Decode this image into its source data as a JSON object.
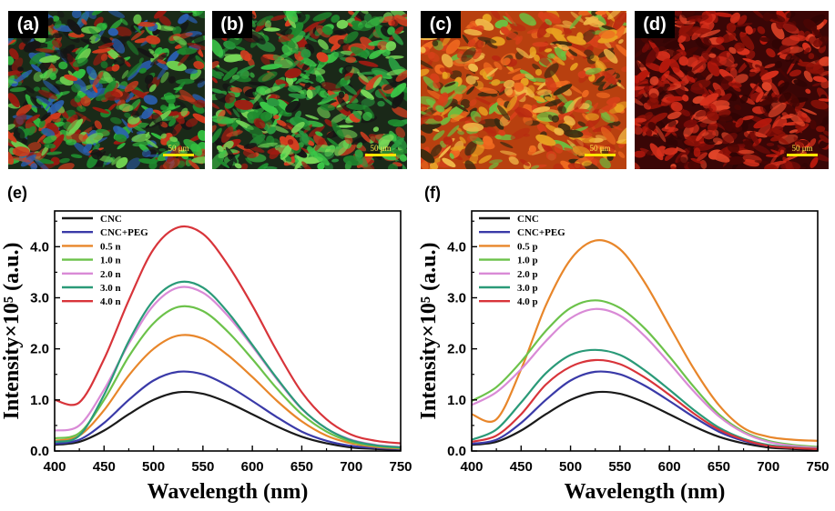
{
  "panels": [
    {
      "label": "(a)",
      "scale": "50 μm",
      "tone": "#2fb83a"
    },
    {
      "label": "(b)",
      "scale": "50 μm",
      "tone": "#34b33a"
    },
    {
      "label": "(c)",
      "scale": "50 μm",
      "tone": "#e0521c"
    },
    {
      "label": "(d)",
      "scale": "50 μm",
      "tone": "#b8190d"
    }
  ],
  "chart_data": [
    {
      "panel": "(e)",
      "type": "line",
      "xlabel": "Wavelength (nm)",
      "ylabel": "Intensity×10⁵ (a.u.)",
      "xlim": [
        400,
        750
      ],
      "ylim": [
        0,
        4.7
      ],
      "xticks": [
        "400",
        "450",
        "500",
        "550",
        "600",
        "650",
        "700",
        "750"
      ],
      "yticks": [
        "0.0",
        "1.0",
        "2.0",
        "3.0",
        "4.0"
      ],
      "legend_position": "top-left",
      "x": [
        400,
        425,
        450,
        475,
        500,
        525,
        550,
        575,
        600,
        625,
        650,
        675,
        700,
        725,
        750
      ],
      "series": [
        {
          "name": "CNC",
          "color": "#1a1a1a",
          "values": [
            0.12,
            0.18,
            0.4,
            0.72,
            1.0,
            1.15,
            1.12,
            0.95,
            0.72,
            0.48,
            0.28,
            0.15,
            0.07,
            0.04,
            0.02
          ]
        },
        {
          "name": "CNC+PEG",
          "color": "#3a3aa8",
          "values": [
            0.14,
            0.22,
            0.55,
            1.0,
            1.38,
            1.55,
            1.5,
            1.28,
            0.98,
            0.66,
            0.38,
            0.2,
            0.1,
            0.06,
            0.04
          ]
        },
        {
          "name": "0.5 n",
          "color": "#e8862a",
          "values": [
            0.2,
            0.3,
            0.8,
            1.48,
            2.0,
            2.26,
            2.2,
            1.88,
            1.45,
            0.98,
            0.58,
            0.3,
            0.15,
            0.08,
            0.05
          ]
        },
        {
          "name": "1.0 n",
          "color": "#6cc24a",
          "values": [
            0.25,
            0.35,
            1.0,
            1.85,
            2.5,
            2.82,
            2.74,
            2.34,
            1.8,
            1.22,
            0.72,
            0.38,
            0.18,
            0.1,
            0.06
          ]
        },
        {
          "name": "2.0 n",
          "color": "#d98ad6",
          "values": [
            0.4,
            0.5,
            1.2,
            2.1,
            2.85,
            3.2,
            3.1,
            2.65,
            2.05,
            1.4,
            0.82,
            0.44,
            0.22,
            0.12,
            0.08
          ]
        },
        {
          "name": "3.0 n",
          "color": "#2a9a78",
          "values": [
            0.18,
            0.3,
            1.1,
            2.15,
            2.95,
            3.3,
            3.2,
            2.72,
            2.08,
            1.42,
            0.83,
            0.44,
            0.21,
            0.11,
            0.07
          ]
        },
        {
          "name": "4.0 n",
          "color": "#d8343a",
          "values": [
            1.0,
            0.95,
            1.8,
            2.95,
            3.95,
            4.38,
            4.25,
            3.65,
            2.85,
            1.95,
            1.15,
            0.62,
            0.32,
            0.2,
            0.15
          ]
        }
      ]
    },
    {
      "panel": "(f)",
      "type": "line",
      "xlabel": "Wavelength (nm)",
      "ylabel": "Intensity×10⁵ (a.u.)",
      "xlim": [
        400,
        750
      ],
      "ylim": [
        0,
        4.7
      ],
      "xticks": [
        "400",
        "450",
        "500",
        "550",
        "600",
        "650",
        "700",
        "750"
      ],
      "yticks": [
        "0.0",
        "1.0",
        "2.0",
        "3.0",
        "4.0"
      ],
      "legend_position": "top-left",
      "x": [
        400,
        425,
        450,
        475,
        500,
        525,
        550,
        575,
        600,
        625,
        650,
        675,
        700,
        725,
        750
      ],
      "series": [
        {
          "name": "CNC",
          "color": "#1a1a1a",
          "values": [
            0.12,
            0.18,
            0.4,
            0.72,
            1.0,
            1.15,
            1.12,
            0.95,
            0.72,
            0.48,
            0.28,
            0.15,
            0.07,
            0.04,
            0.02
          ]
        },
        {
          "name": "CNC+PEG",
          "color": "#3a3aa8",
          "values": [
            0.14,
            0.22,
            0.55,
            1.0,
            1.38,
            1.55,
            1.5,
            1.28,
            0.98,
            0.66,
            0.38,
            0.2,
            0.1,
            0.06,
            0.04
          ]
        },
        {
          "name": "0.5 p",
          "color": "#e8862a",
          "values": [
            0.72,
            0.62,
            1.6,
            2.85,
            3.75,
            4.12,
            3.95,
            3.3,
            2.45,
            1.6,
            0.9,
            0.45,
            0.28,
            0.22,
            0.2
          ]
        },
        {
          "name": "1.0 p",
          "color": "#6cc24a",
          "values": [
            0.98,
            1.25,
            1.75,
            2.35,
            2.8,
            2.95,
            2.8,
            2.4,
            1.85,
            1.25,
            0.72,
            0.38,
            0.2,
            0.12,
            0.08
          ]
        },
        {
          "name": "2.0 p",
          "color": "#d98ad6",
          "values": [
            0.9,
            1.15,
            1.6,
            2.15,
            2.6,
            2.78,
            2.65,
            2.25,
            1.72,
            1.16,
            0.68,
            0.36,
            0.18,
            0.1,
            0.06
          ]
        },
        {
          "name": "3.0 p",
          "color": "#2a9a78",
          "values": [
            0.22,
            0.42,
            0.95,
            1.52,
            1.88,
            1.98,
            1.88,
            1.58,
            1.2,
            0.8,
            0.46,
            0.24,
            0.12,
            0.07,
            0.04
          ]
        },
        {
          "name": "4.0 p",
          "color": "#d8343a",
          "values": [
            0.18,
            0.3,
            0.72,
            1.3,
            1.65,
            1.78,
            1.7,
            1.44,
            1.1,
            0.73,
            0.42,
            0.22,
            0.1,
            0.06,
            0.04
          ]
        }
      ]
    }
  ]
}
